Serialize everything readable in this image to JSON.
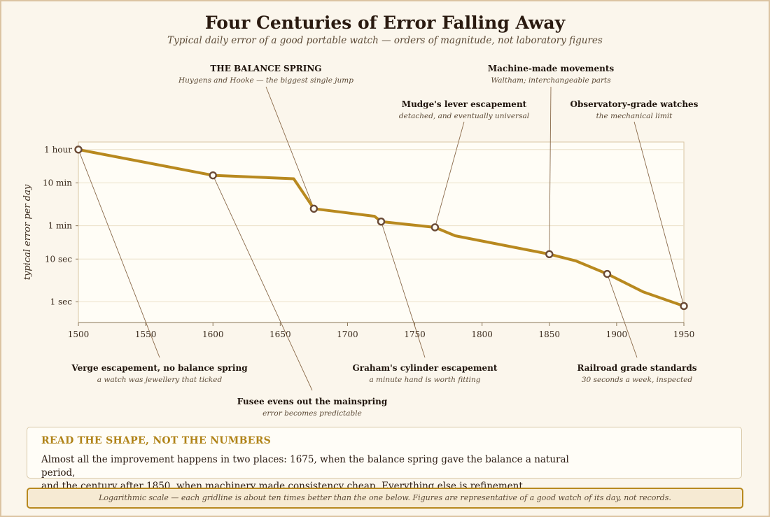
{
  "header": {
    "title": "Four Centuries of Error Falling Away",
    "subtitle": "Typical daily error of a good portable watch — orders of magnitude, not laboratory figures"
  },
  "chart_data": {
    "type": "line",
    "ylabel": "typical error per day",
    "y_scale": "log",
    "grid": true,
    "x_ticks": [
      1500,
      1550,
      1600,
      1650,
      1700,
      1750,
      1800,
      1850,
      1900,
      1950
    ],
    "y_ticks": [
      {
        "label": "1 hour",
        "seconds": 3600
      },
      {
        "label": "10 min",
        "seconds": 600
      },
      {
        "label": "1 min",
        "seconds": 60
      },
      {
        "label": "10 sec",
        "seconds": 10
      },
      {
        "label": "1 sec",
        "seconds": 1
      }
    ],
    "series": [
      {
        "color": "#b8891f",
        "points": [
          {
            "year": 1500,
            "seconds": 3600
          },
          {
            "year": 1600,
            "seconds": 900
          },
          {
            "year": 1660,
            "seconds": 750
          },
          {
            "year": 1675,
            "seconds": 150
          },
          {
            "year": 1720,
            "seconds": 100
          },
          {
            "year": 1725,
            "seconds": 75
          },
          {
            "year": 1765,
            "seconds": 55
          },
          {
            "year": 1780,
            "seconds": 35
          },
          {
            "year": 1850,
            "seconds": 13
          },
          {
            "year": 1870,
            "seconds": 9
          },
          {
            "year": 1893,
            "seconds": 4.5
          },
          {
            "year": 1920,
            "seconds": 1.7
          },
          {
            "year": 1950,
            "seconds": 0.8
          }
        ]
      }
    ],
    "annotations": [
      {
        "year": 1500,
        "seconds": 3600,
        "title": "Verge escapement, no balance spring",
        "note": "a watch was jewellery that ticked",
        "placement": "below"
      },
      {
        "year": 1600,
        "seconds": 900,
        "title": "Fusee evens out the mainspring",
        "note": "error becomes predictable",
        "placement": "below"
      },
      {
        "year": 1675,
        "seconds": 150,
        "title": "THE BALANCE SPRING",
        "note": "Huygens and Hooke — the biggest single jump",
        "placement": "above"
      },
      {
        "year": 1725,
        "seconds": 75,
        "title": "Graham's cylinder escapement",
        "note": "a minute hand is worth fitting",
        "placement": "below"
      },
      {
        "year": 1765,
        "seconds": 55,
        "title": "Mudge's lever escapement",
        "note": "detached, and eventually universal",
        "placement": "above"
      },
      {
        "year": 1850,
        "seconds": 13,
        "title": "Machine-made movements",
        "note": "Waltham; interchangeable parts",
        "placement": "above"
      },
      {
        "year": 1893,
        "seconds": 4.5,
        "title": "Railroad grade standards",
        "note": "30 seconds a week, inspected",
        "placement": "below"
      },
      {
        "year": 1950,
        "seconds": 0.8,
        "title": "Observatory-grade watches",
        "note": "the mechanical limit",
        "placement": "above"
      }
    ]
  },
  "callout": {
    "heading": "READ THE SHAPE, NOT THE NUMBERS",
    "line1": "Almost all the improvement happens in two places: 1675, when the balance spring gave the balance a natural period,",
    "line2": "and the century after 1850, when machinery made consistency cheap. Everything else is refinement."
  },
  "footer": {
    "text": "Logarithmic scale — each gridline is about ten times better than the one below. Figures are representative of a good watch of its day, not records."
  }
}
